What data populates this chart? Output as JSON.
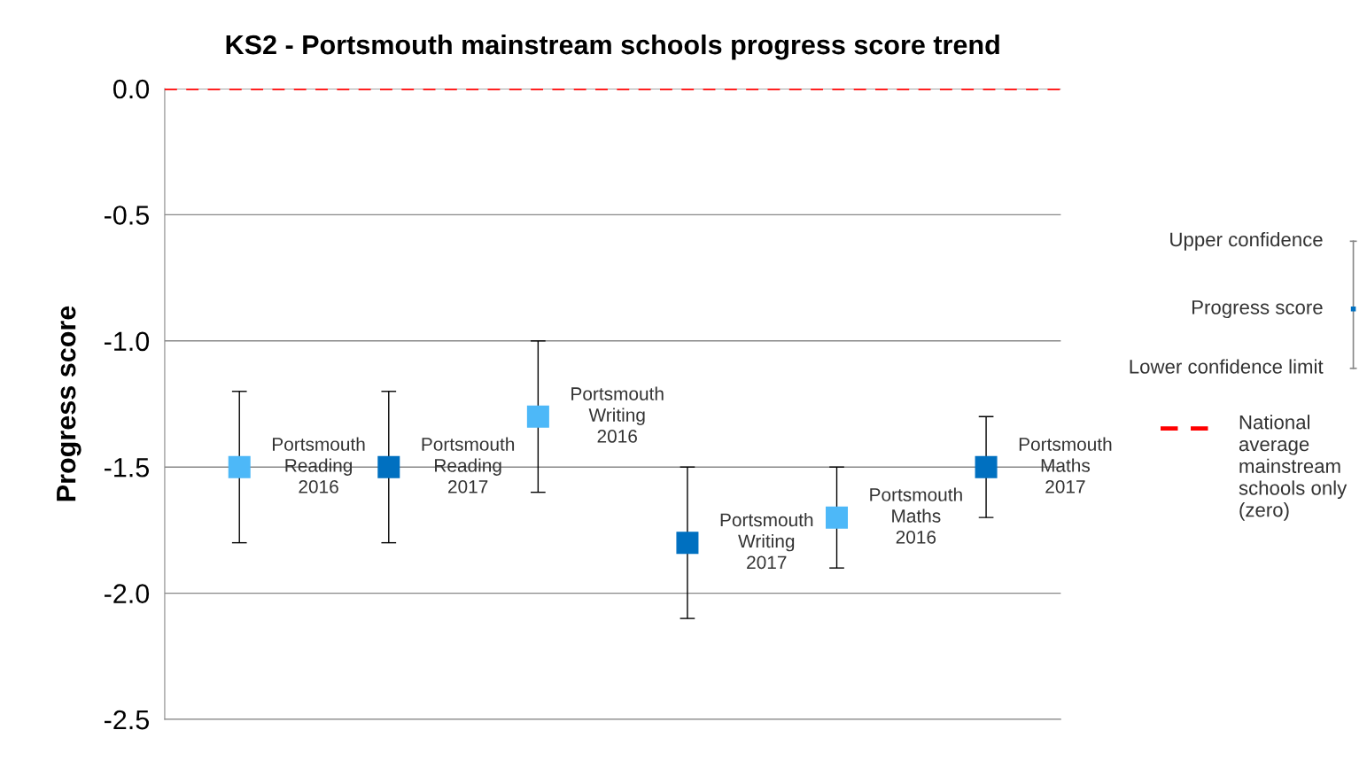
{
  "chart_data": {
    "type": "scatter",
    "title": "KS2 - Portsmouth mainstream schools progress score trend",
    "ylabel": "Progress score",
    "categories": [
      null,
      null,
      null,
      null,
      null,
      null
    ],
    "series": [
      {
        "values": [
          -1.5,
          -1.5,
          -1.3,
          -1.8,
          -1.7,
          -1.5
        ],
        "colors": [
          "#4db8f8",
          "#0070c0",
          "#4db8f8",
          "#0070c0",
          "#4db8f8",
          "#0070c0"
        ],
        "errors": [
          [
            -1.8,
            -1.2
          ],
          [
            -1.8,
            -1.2
          ],
          [
            -1.6,
            -1.0
          ],
          [
            -2.1,
            -1.5
          ],
          [
            -1.9,
            -1.5
          ],
          [
            -1.7,
            -1.3
          ]
        ]
      }
    ],
    "marker": "square",
    "ylim": [
      -2.5,
      0.0
    ],
    "yticks": [
      {
        "value": -2.5,
        "label": "-2.5"
      },
      {
        "value": -2.0,
        "label": "-2.0"
      },
      {
        "value": -1.5,
        "label": "-1.5"
      },
      {
        "value": -1.0,
        "label": "-1.0"
      },
      {
        "value": -0.5,
        "label": "-0.5"
      },
      {
        "value": 0.0,
        "label": "0.0"
      }
    ],
    "grid": "y",
    "tick_labels": "y",
    "legend": "right",
    "ref_lines": [
      {
        "axis": "y",
        "value": 0.0,
        "label": "National\naverage\nmainstream\nschools only\n(zero)",
        "color": "#ff0000",
        "line_style": "dashed"
      }
    ],
    "annotations": [
      "Portsmouth\nReading\n2016",
      "Portsmouth\nReading\n2017",
      "Portsmouth\nWriting\n2016",
      "Portsmouth\nWriting\n2017",
      "Portsmouth\nMaths\n2016",
      "Portsmouth\nMaths\n2017",
      "Upper confidence",
      "Progress score",
      "Lower confidence limit"
    ]
  }
}
